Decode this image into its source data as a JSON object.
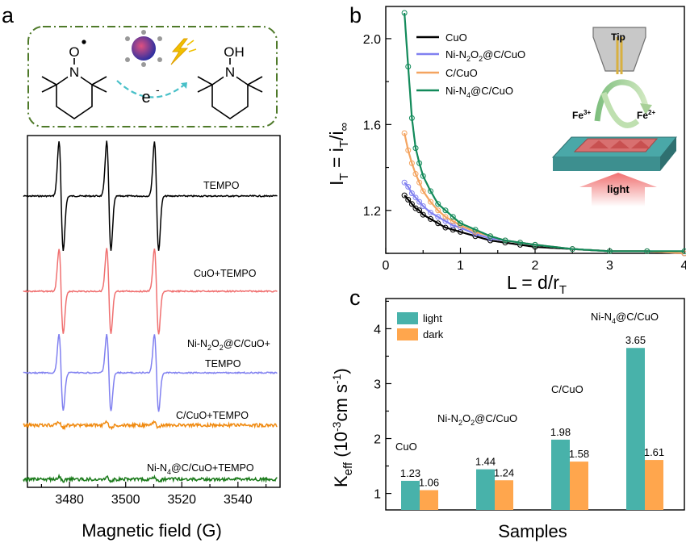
{
  "panels": {
    "a": {
      "label": "a",
      "scheme": {
        "electron_label": "e",
        "electron_sup": "-",
        "reactant_atoms": [
          "O",
          "N"
        ],
        "product_atoms": [
          "OH",
          "N"
        ]
      },
      "xlabel": "Magnetic field (G)",
      "xticks": [
        "3480",
        "3500",
        "3520",
        "3540"
      ],
      "traces": [
        {
          "name": "TEMPO",
          "color": "#000000",
          "amplitude": 1.0
        },
        {
          "name": "CuO+TEMPO",
          "color": "#f07070",
          "amplitude": 0.78
        },
        {
          "name_line1": "Ni-N",
          "name_sub1": "2",
          "name_mid": "O",
          "name_sub2": "2",
          "name_line1_end": "@C/CuO+",
          "name_line2": "TEMPO",
          "color": "#8080f0",
          "amplitude": 0.7
        },
        {
          "name": "C/CuO+TEMPO",
          "color": "#f08a10",
          "amplitude": 0.05
        },
        {
          "name_a": "Ni-N",
          "name_sub": "4",
          "name_b": "@C/CuO+TEMPO",
          "color": "#1a7a1a",
          "amplitude": 0.04
        }
      ]
    },
    "b": {
      "label": "b",
      "xlabel_main": "L = d/r",
      "xlabel_sub": "T",
      "ylabel_parts": [
        "I",
        "T",
        " = i",
        "T",
        "/i",
        "∞"
      ],
      "xticks": [
        "0",
        "1",
        "2",
        "3",
        "4"
      ],
      "yticks": [
        "1.2",
        "1.6",
        "2.0"
      ],
      "legend": [
        {
          "text": "CuO",
          "color": "#000000"
        },
        {
          "text_a": "Ni-N",
          "sub1": "2",
          "text_b": "O",
          "sub2": "2",
          "text_c": "@C/CuO",
          "color": "#8080f0"
        },
        {
          "text": "C/CuO",
          "color": "#f4a460"
        },
        {
          "text_a": "Ni-N",
          "sub1": "4",
          "text_c": "@C/CuO",
          "color": "#128a5a"
        }
      ],
      "inset": {
        "tip_label": "Tip",
        "fe3_label": "Fe",
        "fe3_sup": "3+",
        "fe2_label": "Fe",
        "fe2_sup": "2+",
        "light_label": "light"
      }
    },
    "c": {
      "label": "c",
      "xlabel": "Samples",
      "ylabel_main": "K",
      "ylabel_sub": "eff",
      "ylabel_unit": " (10",
      "ylabel_exp1": "-3",
      "ylabel_unit2": "cm s",
      "ylabel_exp2": "-1",
      "ylabel_close": ")",
      "yticks": [
        "1",
        "2",
        "3",
        "4"
      ],
      "legend": [
        {
          "text": "light",
          "color": "#48b2aa"
        },
        {
          "text": "dark",
          "color": "#ffa64d"
        }
      ],
      "group_labels": [
        {
          "a": "CuO"
        },
        {
          "a": "Ni-N",
          "s1": "2",
          "b": "O",
          "s2": "2",
          "c": "@C/CuO"
        },
        {
          "a": "C/CuO"
        },
        {
          "a": "Ni-N",
          "s1": "4",
          "c": "@C/CuO"
        }
      ]
    }
  },
  "chart_data": [
    {
      "type": "line",
      "panel": "a",
      "xlabel": "Magnetic field (G)",
      "xlim": [
        3465,
        3555
      ],
      "series_peaks_at": [
        3477,
        3494,
        3511
      ],
      "series": [
        "TEMPO",
        "CuO+TEMPO",
        "Ni-N2O2@C/CuO+TEMPO",
        "C/CuO+TEMPO",
        "Ni-N4@C/CuO+TEMPO"
      ]
    },
    {
      "type": "scatter",
      "panel": "b",
      "xlabel": "L = d/rT",
      "ylabel": "IT = iT/i∞",
      "xlim": [
        0,
        4
      ],
      "ylim": [
        1.0,
        2.15
      ],
      "x": [
        0.25,
        0.3,
        0.35,
        0.4,
        0.45,
        0.5,
        0.6,
        0.7,
        0.8,
        0.9,
        1.0,
        1.2,
        1.4,
        1.6,
        1.8,
        2.0,
        2.5,
        3.0,
        3.5,
        4.0
      ],
      "series": [
        {
          "name": "CuO",
          "values": [
            1.27,
            1.25,
            1.23,
            1.21,
            1.2,
            1.18,
            1.16,
            1.14,
            1.12,
            1.11,
            1.1,
            1.08,
            1.06,
            1.05,
            1.04,
            1.03,
            1.02,
            1.01,
            1.01,
            1.0
          ]
        },
        {
          "name": "Ni-N2O2@C/CuO",
          "values": [
            1.33,
            1.31,
            1.28,
            1.26,
            1.24,
            1.22,
            1.19,
            1.17,
            1.15,
            1.13,
            1.12,
            1.09,
            1.07,
            1.06,
            1.05,
            1.04,
            1.02,
            1.01,
            1.01,
            1.0
          ]
        },
        {
          "name": "C/CuO",
          "values": [
            1.56,
            1.48,
            1.42,
            1.37,
            1.33,
            1.29,
            1.24,
            1.2,
            1.17,
            1.15,
            1.13,
            1.1,
            1.08,
            1.06,
            1.05,
            1.04,
            1.02,
            1.01,
            1.01,
            1.0
          ]
        },
        {
          "name": "Ni-N4@C/CuO",
          "values": [
            2.12,
            1.87,
            1.63,
            1.49,
            1.42,
            1.36,
            1.29,
            1.23,
            1.2,
            1.17,
            1.14,
            1.11,
            1.08,
            1.06,
            1.05,
            1.04,
            1.02,
            1.01,
            1.01,
            1.01
          ]
        }
      ]
    },
    {
      "type": "bar",
      "panel": "c",
      "categories": [
        "CuO",
        "Ni-N2O2@C/CuO",
        "C/CuO",
        "Ni-N4@C/CuO"
      ],
      "xlabel": "Samples",
      "ylabel": "Keff (10-3cm s-1)",
      "ylim": [
        0.7,
        4.55
      ],
      "series": [
        {
          "name": "light",
          "values": [
            1.23,
            1.44,
            1.98,
            3.65
          ],
          "labels": [
            "1.23",
            "1.44",
            "1.98",
            "3.65"
          ]
        },
        {
          "name": "dark",
          "values": [
            1.06,
            1.24,
            1.58,
            1.61
          ],
          "labels": [
            "1.06",
            "1.24",
            "1.58",
            "1.61"
          ]
        }
      ]
    }
  ]
}
